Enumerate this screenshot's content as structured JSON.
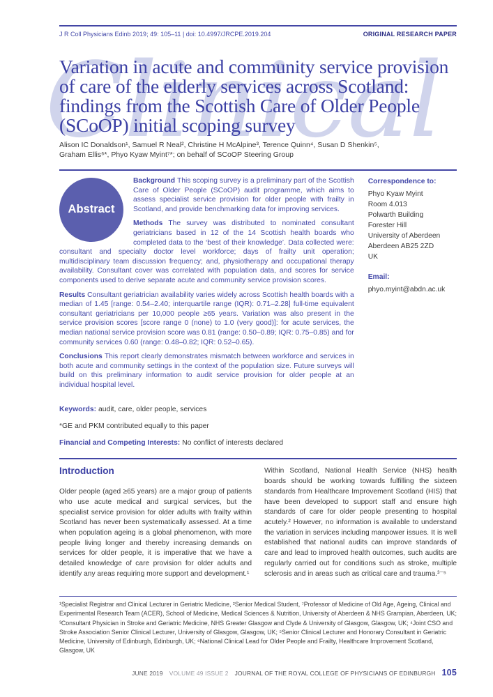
{
  "header": {
    "citation": "J R Coll Physicians Edinb 2019; 49: 105–11 | doi: 10.4997/JRCPE.2019.204",
    "category": "ORIGINAL RESEARCH PAPER"
  },
  "watermark": "Clinical",
  "title": "Variation in acute and community service provision of care of the elderly services across Scotland: findings from the Scottish Care of Older People (SCoOP) initial scoping survey",
  "authors_line1": "Alison IC Donaldson¹, Samuel R Neal², Christine H McAlpine³, Terence Quinn⁴, Susan D Shenkin⁵,",
  "authors_line2": "Graham Ellis⁶*, Phyo Kyaw Myint⁷*; on behalf of SCoOP Steering Group",
  "abstract": {
    "badge": "Abstract",
    "paragraphs": [
      {
        "label": "Background",
        "text": "This scoping survey is a preliminary part of the Scottish Care of Older People (SCoOP) audit programme, which aims to assess specialist service provision for older people with frailty in Scotland, and provide benchmarking data for improving services."
      },
      {
        "label": "Methods",
        "text": "The survey was distributed to nominated consultant geriatricians based in 12 of the 14 Scottish health boards who completed data to the ‘best of their knowledge’. Data collected were: consultant and specialty doctor level workforce; days of frailty unit operation; multidisciplinary team discussion frequency; and, physiotherapy and occupational therapy availability. Consultant cover was correlated with population data, and scores for service components used to derive separate acute and community service provision scores."
      },
      {
        "label": "Results",
        "text": "Consultant geriatrician availability varies widely across Scottish health boards with a median of 1.45 [range: 0.54–2.40; interquartile range (IQR): 0.71–2.28] full-time equivalent consultant geriatricians per 10,000 people ≥65 years. Variation was also present in the service provision scores [score range 0 (none) to 1.0 (very good)]: for acute services, the median national service provision score was 0.81 (range: 0.50–0.89; IQR: 0.75–0.85) and for community services 0.60 (range: 0.48–0.82; IQR: 0.52–0.65)."
      },
      {
        "label": "Conclusions",
        "text": "This report clearly demonstrates mismatch between workforce and services in both acute and community settings in the context of the population size. Future surveys will build on this preliminary information to audit service provision for older people at an individual hospital level."
      }
    ]
  },
  "correspondence": {
    "label": "Correspondence to:",
    "address": "Phyo Kyaw Myint\nRoom 4.013\nPolwarth Building\nForester Hill\nUniversity of Aberdeen\nAberdeen AB25 2ZD\nUK",
    "email_label": "Email:",
    "email": "phyo.myint@abdn.ac.uk"
  },
  "meta": {
    "keywords_label": "Keywords:",
    "keywords": "audit, care, older people, services",
    "contribution_note": "*GE and PKM contributed equally to this paper",
    "financial_label": "Financial and Competing Interests:",
    "financial_text": "No conflict of interests declared"
  },
  "introduction": {
    "heading": "Introduction",
    "col1": "Older people (aged ≥65 years) are a major group of patients who use acute medical and surgical services, but the specialist service provision for older adults with frailty within Scotland has never been systematically assessed. At a time when population ageing is a global phenomenon, with more people living longer and thereby increasing demands on services for older people, it is imperative that we have a detailed knowledge of care provision for older adults and identify any areas requiring more support and development.¹",
    "col2": "Within Scotland, National Health Service (NHS) health boards should be working towards fulfilling the sixteen standards from Healthcare Improvement Scotland (HIS) that have been developed to support staff and ensure high standards of care for older people presenting to hospital acutely.² However, no information is available to understand the variation in services including manpower issues. It is well established that national audits can improve standards of care and lead to improved health outcomes, such audits are regularly carried out for conditions such as stroke, multiple sclerosis and in areas such as critical care and trauma.³⁻⁵"
  },
  "affiliations": "¹Specialist Registrar and Clinical Lecturer in Geriatric Medicine, ²Senior Medical Student, ⁷Professor of Medicine of Old Age, Ageing, Clinical and Experimental Research Team (ACER), School of Medicine, Medical Sciences & Nutrition, University of Aberdeen & NHS Grampian, Aberdeen, UK; ³Consultant Physician in Stroke and Geriatric Medicine, NHS Greater Glasgow and Clyde & University of Glasgow, Glasgow, UK; ⁴Joint CSO and Stroke Association Senior Clinical Lecturer, University of Glasgow, Glasgow, UK; ⁵Senior Clinical Lecturer and Honorary Consultant in Geriatric Medicine, University of Edinburgh, Edinburgh, UK; ⁶National Clinical Lead for Older People and Frailty, Healthcare Improvement Scotland, Glasgow, UK",
  "footer": {
    "date": "JUNE 2019",
    "volume": "VOLUME 49 ISSUE 2",
    "journal": "JOURNAL OF THE ROYAL COLLEGE OF PHYSICIANS OF EDINBURGH",
    "page": "105"
  },
  "colors": {
    "accent": "#4346a5",
    "title": "#3b3fa4",
    "badge": "#5b5fae",
    "watermark": "#d0d4ec",
    "body_text": "#3a3a3a"
  }
}
